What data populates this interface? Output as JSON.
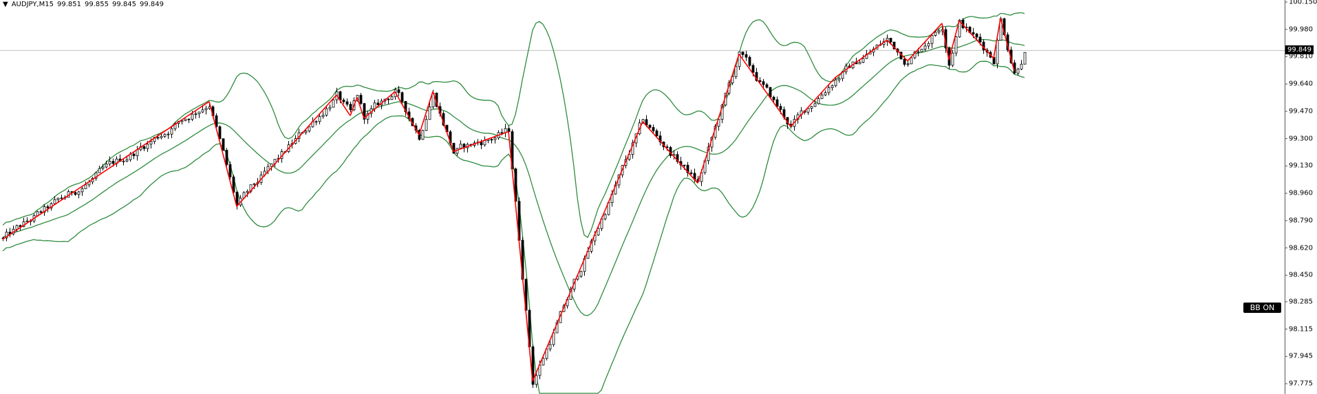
{
  "header": {
    "menu_arrow": "▼",
    "symbol": "AUDJPY,M15",
    "open": "99.851",
    "high": "99.855",
    "low": "99.845",
    "close": "99.849"
  },
  "bb_button": {
    "label": "BB ON"
  },
  "current_price_label": "99.849",
  "colors": {
    "candles": "#000000",
    "bands": "#2e8b3e",
    "zigzag": "#ff0000",
    "price_line": "#c0c0c0",
    "background": "#ffffff"
  },
  "chart_data": {
    "type": "candlestick",
    "symbol": "AUDJPY",
    "timeframe": "M15",
    "ylim": [
      97.775,
      100.15
    ],
    "y_ticks": [
      "100.150",
      "99.980",
      "99.810",
      "99.640",
      "99.470",
      "99.300",
      "99.130",
      "98.960",
      "98.790",
      "98.620",
      "98.450",
      "98.285",
      "98.115",
      "97.945",
      "97.775"
    ],
    "current_price": 99.849,
    "overlays": [
      "bollinger-bands",
      "zigzag"
    ],
    "zigzag_vertices_bar_price": [
      [
        0,
        98.674
      ],
      [
        60,
        99.531
      ],
      [
        68,
        98.878
      ],
      [
        97,
        99.572
      ],
      [
        101,
        99.443
      ],
      [
        103,
        99.557
      ],
      [
        105,
        99.427
      ],
      [
        114,
        99.593
      ],
      [
        121,
        99.323
      ],
      [
        125,
        99.593
      ],
      [
        131,
        99.22
      ],
      [
        147,
        99.344
      ],
      [
        154,
        97.791
      ],
      [
        186,
        99.406
      ],
      [
        202,
        99.023
      ],
      [
        214,
        99.826
      ],
      [
        229,
        99.376
      ],
      [
        242,
        99.681
      ],
      [
        257,
        99.914
      ],
      [
        263,
        99.784
      ],
      [
        273,
        100.018
      ],
      [
        275,
        99.79
      ],
      [
        278,
        100.033
      ],
      [
        288,
        99.8
      ],
      [
        290,
        100.049
      ],
      [
        294,
        99.722
      ],
      [
        297,
        99.849
      ]
    ],
    "grid": false
  }
}
